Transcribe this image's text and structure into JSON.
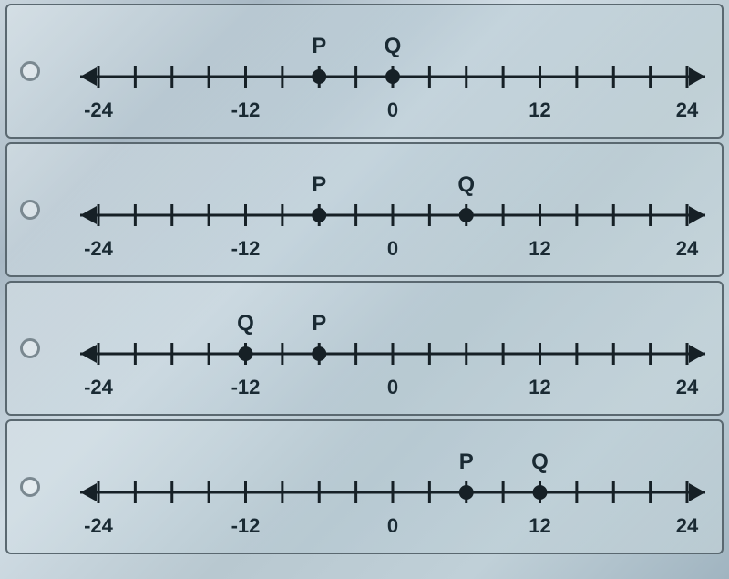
{
  "chart": {
    "type": "number-line-multiple-choice",
    "line_color": "#162026",
    "line_width": 3,
    "tick_height": 24,
    "tick_width": 3,
    "arrow_size": 14,
    "point_radius": 8,
    "point_fill": "#162026",
    "label_fontsize": 22,
    "point_label_fontsize": 24,
    "background_gradient": [
      "#c8d4dc",
      "#a8b8c4",
      "#d0dce4",
      "#b8c8d0"
    ],
    "x_min": -24,
    "x_max": 24,
    "tick_step": 3,
    "axis_labels": [
      {
        "value": -24,
        "text": "-24"
      },
      {
        "value": -12,
        "text": "-12"
      },
      {
        "value": 0,
        "text": "0"
      },
      {
        "value": 12,
        "text": "12"
      },
      {
        "value": 24,
        "text": "24"
      }
    ],
    "options": [
      {
        "id": "A",
        "points": [
          {
            "name": "P",
            "value": -6
          },
          {
            "name": "Q",
            "value": 0
          }
        ]
      },
      {
        "id": "B",
        "points": [
          {
            "name": "P",
            "value": -6
          },
          {
            "name": "Q",
            "value": 6
          }
        ]
      },
      {
        "id": "C",
        "points": [
          {
            "name": "Q",
            "value": -12
          },
          {
            "name": "P",
            "value": -6
          }
        ]
      },
      {
        "id": "D",
        "points": [
          {
            "name": "P",
            "value": 6
          },
          {
            "name": "Q",
            "value": 12
          }
        ]
      }
    ]
  }
}
